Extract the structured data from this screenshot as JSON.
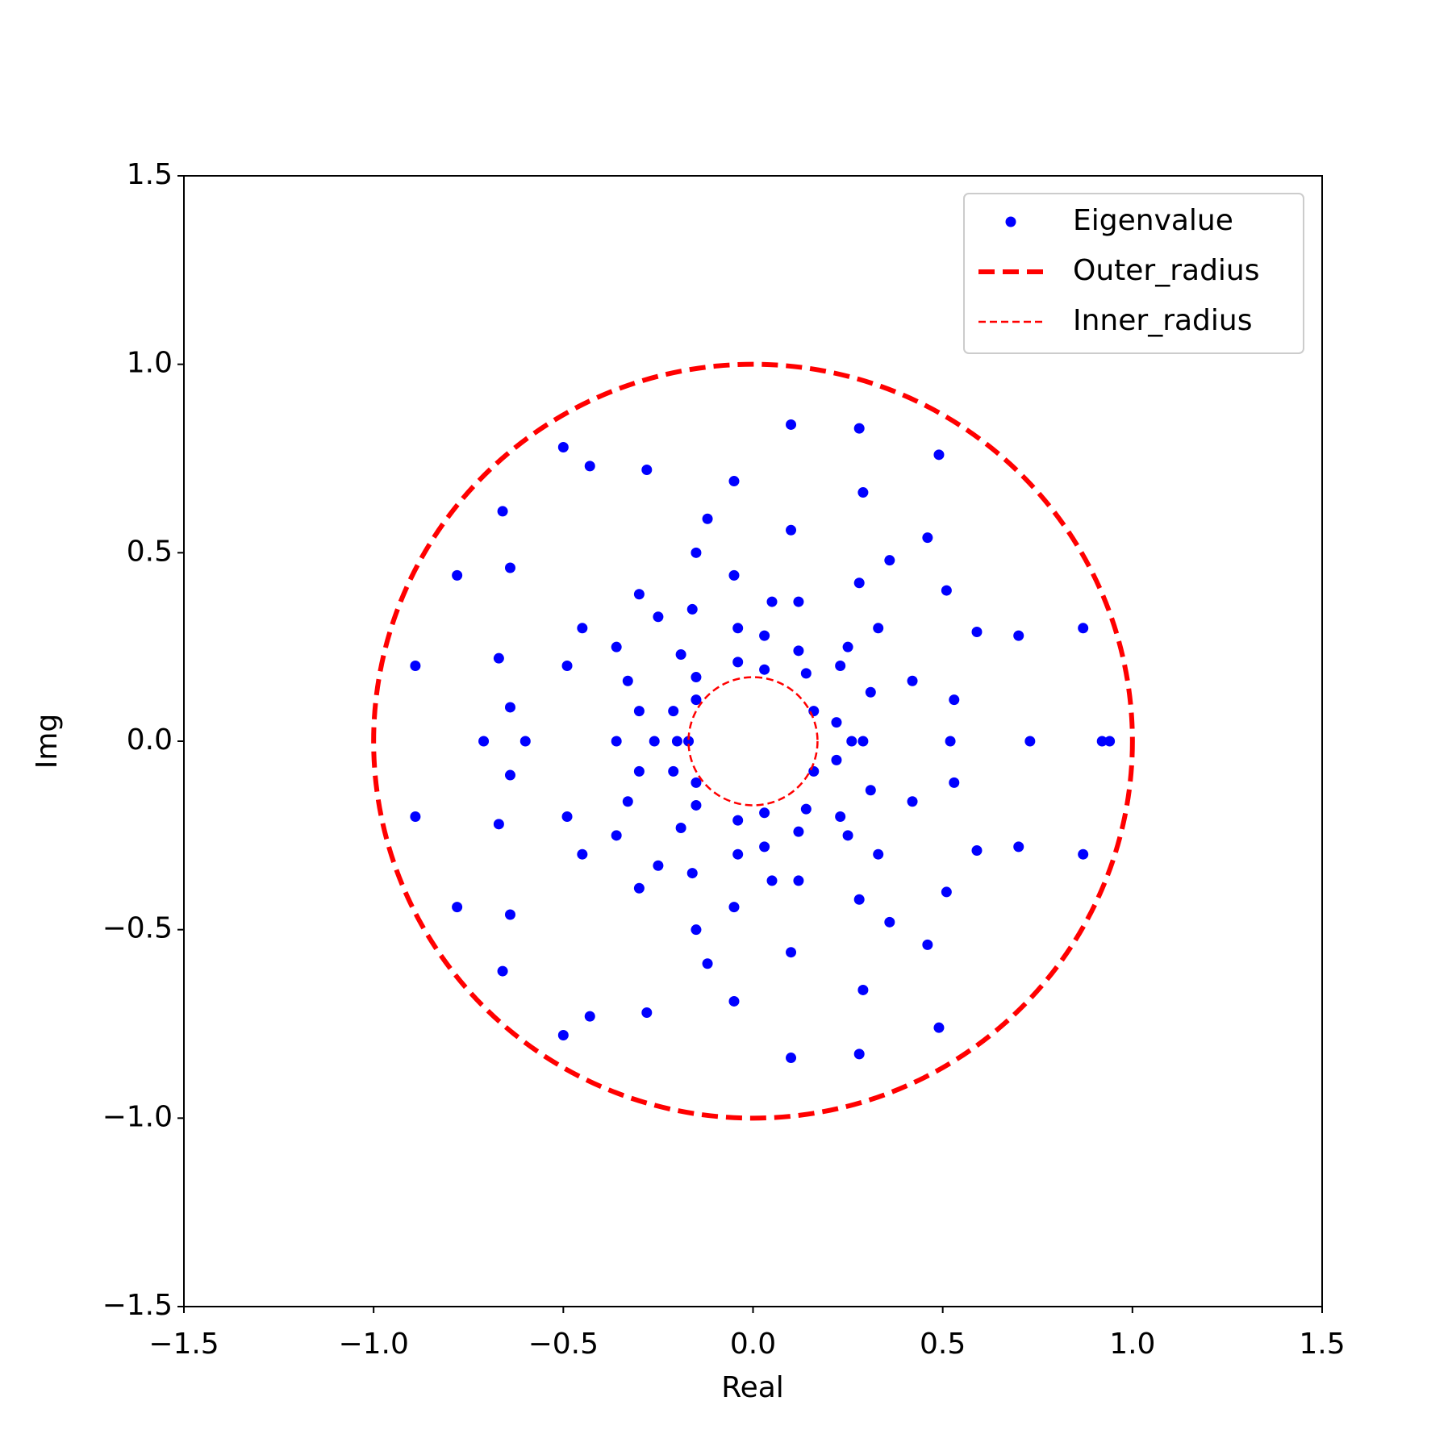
{
  "chart_data": {
    "type": "scatter",
    "x_label": "Real",
    "y_label": "Img",
    "xlim": [
      -1.5,
      1.5
    ],
    "ylim": [
      -1.5,
      1.5
    ],
    "xticks": [
      {
        "value": -1.5,
        "label": "−1.5"
      },
      {
        "value": -1.0,
        "label": "−1.0"
      },
      {
        "value": -0.5,
        "label": "−0.5"
      },
      {
        "value": 0,
        "label": "0.0"
      },
      0.5,
      {
        "value": 1.0,
        "label": "1.0"
      },
      1.5
    ],
    "yticks": [
      {
        "value": -1.5,
        "label": "−1.5"
      },
      {
        "value": -1.0,
        "label": "−1.0"
      },
      {
        "value": -0.5,
        "label": "−0.5"
      },
      {
        "value": 0,
        "label": "0.0"
      },
      0.5,
      {
        "value": 1.0,
        "label": "1.0"
      },
      1.5
    ],
    "legend": "upper right",
    "series": [
      {
        "name": "Eigenvalue",
        "color": "#0000ff",
        "kind": "points",
        "x": [
          0.1,
          0.28,
          -0.5,
          -0.43,
          -0.28,
          0.49,
          -0.05,
          0.29,
          -0.66,
          -0.12,
          0.1,
          0.46,
          -0.78,
          -0.64,
          -0.15,
          0.36,
          -0.05,
          0.28,
          0.51,
          -0.3,
          0.05,
          0.12,
          -0.25,
          -0.16,
          -0.45,
          -0.04,
          0.33,
          0.87,
          0.59,
          0.7,
          0.03,
          -0.36,
          0.25,
          0.12,
          -0.19,
          -0.67,
          -0.04,
          0.23,
          -0.89,
          -0.49,
          0.03,
          0.14,
          -0.15,
          -0.33,
          0.42,
          0.31,
          0.53,
          -0.15,
          -0.64,
          -0.21,
          -0.3,
          0.16,
          0.22,
          0.1,
          0.28,
          -0.5,
          -0.43,
          -0.28,
          0.49,
          -0.05,
          0.29,
          -0.66,
          -0.12,
          0.1,
          0.46,
          -0.78,
          -0.64,
          -0.15,
          0.36,
          -0.05,
          0.28,
          0.51,
          -0.3,
          0.05,
          0.12,
          -0.25,
          -0.16,
          -0.45,
          -0.04,
          0.33,
          0.87,
          0.59,
          0.7,
          0.03,
          -0.36,
          0.25,
          0.12,
          -0.19,
          -0.67,
          -0.04,
          0.23,
          -0.89,
          -0.49,
          0.03,
          0.14,
          -0.15,
          -0.33,
          0.42,
          0.31,
          0.53,
          -0.15,
          -0.64,
          -0.21,
          -0.3,
          0.16,
          0.22,
          -0.71,
          -0.6,
          -0.36,
          -0.26,
          -0.2,
          -0.17,
          0.26,
          0.29,
          0.52,
          0.73,
          0.92,
          0.94
        ],
        "values": [
          0.84,
          0.83,
          0.78,
          0.73,
          0.72,
          0.76,
          0.69,
          0.66,
          0.61,
          0.59,
          0.56,
          0.54,
          0.44,
          0.46,
          0.5,
          0.48,
          0.44,
          0.42,
          0.4,
          0.39,
          0.37,
          0.37,
          0.33,
          0.35,
          0.3,
          0.3,
          0.3,
          0.3,
          0.29,
          0.28,
          0.28,
          0.25,
          0.25,
          0.24,
          0.23,
          0.22,
          0.21,
          0.2,
          0.2,
          0.2,
          0.19,
          0.18,
          0.17,
          0.16,
          0.16,
          0.13,
          0.11,
          0.11,
          0.09,
          0.08,
          0.08,
          0.08,
          0.05,
          -0.84,
          -0.83,
          -0.78,
          -0.73,
          -0.72,
          -0.76,
          -0.69,
          -0.66,
          -0.61,
          -0.59,
          -0.56,
          -0.54,
          -0.44,
          -0.46,
          -0.5,
          -0.48,
          -0.44,
          -0.42,
          -0.4,
          -0.39,
          -0.37,
          -0.37,
          -0.33,
          -0.35,
          -0.3,
          -0.3,
          -0.3,
          -0.3,
          -0.29,
          -0.28,
          -0.28,
          -0.25,
          -0.25,
          -0.24,
          -0.23,
          -0.22,
          -0.21,
          -0.2,
          -0.2,
          -0.2,
          -0.19,
          -0.18,
          -0.17,
          -0.16,
          -0.16,
          -0.13,
          -0.11,
          -0.11,
          -0.09,
          -0.08,
          -0.08,
          -0.08,
          -0.05,
          0,
          0,
          0,
          0,
          0,
          0,
          0,
          0,
          0,
          0,
          0,
          0
        ]
      },
      {
        "name": "Outer_radius",
        "color": "#ff0000",
        "kind": "circle",
        "radius": 1.0,
        "width": 6,
        "dash": "20 10"
      },
      {
        "name": "Inner_radius",
        "color": "#ff0000",
        "kind": "circle",
        "radius": 0.17,
        "width": 2.5,
        "dash": "9 5"
      }
    ]
  }
}
